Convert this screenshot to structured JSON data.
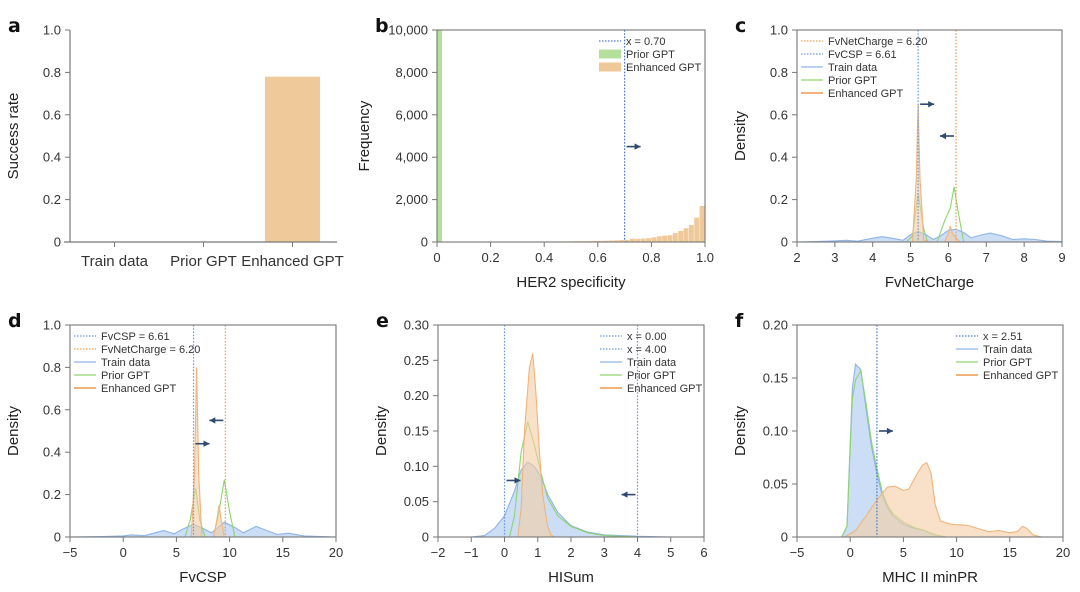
{
  "chart_data": [
    {
      "id": "a",
      "type": "bar",
      "panel_letter": "a",
      "title": "",
      "xlabel": "",
      "ylabel": "Success rate",
      "categories": [
        "Train data",
        "Prior GPT",
        "Enhanced GPT"
      ],
      "values": [
        0,
        0,
        0.78
      ],
      "ylim": [
        0,
        1.0
      ],
      "yticks": [
        0,
        0.2,
        0.4,
        0.6,
        0.8,
        1.0
      ],
      "ytick_labels": [
        "0",
        "0.2",
        "0.4",
        "0.6",
        "0.8",
        "1.0"
      ],
      "bar_color": "#f0c99a",
      "grid": false
    },
    {
      "id": "b",
      "type": "bar",
      "subtype": "histogram",
      "panel_letter": "b",
      "xlabel": "HER2 specificity",
      "ylabel": "Frequency",
      "xlim": [
        0,
        1.0
      ],
      "ylim": [
        0,
        10000
      ],
      "xticks": [
        0,
        0.2,
        0.4,
        0.6,
        0.8,
        1.0
      ],
      "xtick_labels": [
        "0",
        "0.2",
        "0.4",
        "0.6",
        "0.8",
        "1.0"
      ],
      "yticks": [
        0,
        2000,
        4000,
        6000,
        8000,
        10000
      ],
      "ytick_labels": [
        "0",
        "2,000",
        "4,000",
        "6,000",
        "8,000",
        "10,000"
      ],
      "legend_position": "top-right",
      "series": [
        {
          "name": "Prior GPT",
          "color": "#b5e09c",
          "bin_width": 0.02,
          "bins_start": [
            0.0
          ],
          "values": [
            10000
          ]
        },
        {
          "name": "Enhanced GPT",
          "color": "#f0c99a",
          "bin_width": 0.02,
          "bins_start": [
            0.0,
            0.02,
            0.04,
            0.06,
            0.08,
            0.1,
            0.12,
            0.14,
            0.16,
            0.18,
            0.2,
            0.22,
            0.24,
            0.26,
            0.28,
            0.3,
            0.32,
            0.34,
            0.36,
            0.38,
            0.4,
            0.42,
            0.44,
            0.46,
            0.48,
            0.5,
            0.52,
            0.54,
            0.56,
            0.58,
            0.6,
            0.62,
            0.64,
            0.66,
            0.68,
            0.7,
            0.72,
            0.74,
            0.76,
            0.78,
            0.8,
            0.82,
            0.84,
            0.86,
            0.88,
            0.9,
            0.92,
            0.94,
            0.96,
            0.98
          ],
          "values": [
            10,
            10,
            10,
            10,
            10,
            10,
            10,
            10,
            10,
            10,
            10,
            15,
            15,
            15,
            15,
            15,
            20,
            20,
            25,
            25,
            25,
            25,
            25,
            30,
            30,
            35,
            40,
            40,
            45,
            50,
            55,
            60,
            70,
            80,
            90,
            100,
            160,
            150,
            160,
            180,
            220,
            270,
            300,
            320,
            420,
            520,
            650,
            800,
            1150,
            1700
          ]
        }
      ],
      "vlines": [
        {
          "x": 0.7,
          "label": "x = 0.70",
          "color": "#4a78c8"
        }
      ],
      "annotations": [
        {
          "type": "arrow",
          "direction": "right",
          "x": 0.7,
          "y": 4500
        }
      ]
    },
    {
      "id": "c",
      "type": "area",
      "subtype": "density",
      "panel_letter": "c",
      "xlabel": "FvNetCharge",
      "ylabel": "Density",
      "xlim": [
        2,
        9
      ],
      "ylim": [
        0,
        1.0
      ],
      "xticks": [
        2,
        3,
        4,
        5,
        6,
        7,
        8,
        9
      ],
      "xtick_labels": [
        "2",
        "3",
        "4",
        "5",
        "6",
        "7",
        "8",
        "9"
      ],
      "yticks": [
        0,
        0.2,
        0.4,
        0.6,
        0.8,
        1.0
      ],
      "ytick_labels": [
        "0",
        "0.2",
        "0.4",
        "0.6",
        "0.8",
        "1.0"
      ],
      "legend_position": "top-left",
      "vlines": [
        {
          "x": 6.2,
          "label": "FvNetCharge = 6.20",
          "color": "#f0a050"
        },
        {
          "x": 5.2,
          "label": "FvCSP = 6.61",
          "color": "#6a9ae0"
        }
      ],
      "series": [
        {
          "name": "Train data",
          "color": "#8fb4e6",
          "fill": "#a9c8ee",
          "x": [
            2,
            2.5,
            3,
            3.3,
            3.6,
            4,
            4.25,
            4.5,
            4.8,
            5.0,
            5.2,
            5.4,
            5.6,
            5.8,
            6.0,
            6.2,
            6.4,
            6.6,
            6.8,
            7.1,
            7.4,
            7.7,
            8.0,
            8.3,
            8.6,
            9
          ],
          "y": [
            0,
            0.002,
            0.005,
            0.008,
            0.004,
            0.018,
            0.025,
            0.018,
            0.008,
            0.035,
            0.05,
            0.035,
            0.012,
            0.03,
            0.055,
            0.06,
            0.045,
            0.02,
            0.03,
            0.042,
            0.03,
            0.012,
            0.015,
            0.012,
            0.004,
            0.002
          ]
        },
        {
          "name": "Prior GPT",
          "color": "#8ed46e",
          "fill": "none",
          "x": [
            2,
            4.9,
            5.05,
            5.2,
            5.35,
            5.45,
            5.7,
            5.9,
            6.05,
            6.15,
            6.25,
            6.4,
            9
          ],
          "y": [
            0,
            0,
            0.03,
            0.23,
            0.06,
            0,
            0,
            0.1,
            0.16,
            0.26,
            0.15,
            0,
            0
          ]
        },
        {
          "name": "Enhanced GPT",
          "color": "#f0b47a",
          "fill": "#f3cda4",
          "x": [
            2,
            5.05,
            5.15,
            5.2,
            5.25,
            5.35,
            5.5,
            5.9,
            6.0,
            6.05,
            6.1,
            6.3,
            9
          ],
          "y": [
            0,
            0,
            0.3,
            0.65,
            0.3,
            0.01,
            0,
            0,
            0.04,
            0.075,
            0.04,
            0,
            0
          ]
        }
      ],
      "annotations": [
        {
          "type": "arrow",
          "direction": "right",
          "x": 5.2,
          "y": 0.65
        },
        {
          "type": "arrow",
          "direction": "left",
          "x": 6.2,
          "y": 0.5
        }
      ]
    },
    {
      "id": "d",
      "type": "area",
      "subtype": "density",
      "panel_letter": "d",
      "xlabel": "FvCSP",
      "ylabel": "Density",
      "xlim": [
        -5,
        20
      ],
      "ylim": [
        0,
        1.0
      ],
      "xticks": [
        -5,
        0,
        5,
        10,
        15,
        20
      ],
      "xtick_labels": [
        "−5",
        "0",
        "5",
        "10",
        "15",
        "20"
      ],
      "yticks": [
        0,
        0.2,
        0.4,
        0.6,
        0.8,
        1.0
      ],
      "ytick_labels": [
        "0",
        "0.2",
        "0.4",
        "0.6",
        "0.8",
        "1.0"
      ],
      "legend_position": "top-left",
      "vlines": [
        {
          "x": 6.61,
          "label": "FvCSP = 6.61",
          "color": "#6a9ae0"
        },
        {
          "x": 9.6,
          "label": "FvNetCharge = 6.20",
          "color": "#f0a050"
        }
      ],
      "series": [
        {
          "name": "Train data",
          "color": "#8fb4e6",
          "fill": "#a9c8ee",
          "x": [
            -5,
            -2,
            0,
            0.8,
            2,
            3,
            3.8,
            4.8,
            5.5,
            6.6,
            7.5,
            8.3,
            9.5,
            10.5,
            11.3,
            12.5,
            13.5,
            14.5,
            15.5,
            17,
            18.5,
            20
          ],
          "y": [
            0,
            0.002,
            0.005,
            0.01,
            0.006,
            0.02,
            0.03,
            0.015,
            0.035,
            0.06,
            0.04,
            0.02,
            0.07,
            0.045,
            0.02,
            0.05,
            0.03,
            0.012,
            0.018,
            0.005,
            0.002,
            0
          ]
        },
        {
          "name": "Prior GPT",
          "color": "#8ed46e",
          "fill": "none",
          "x": [
            -5,
            5.8,
            6.3,
            6.8,
            7.2,
            7.7,
            8.5,
            9.0,
            9.5,
            10.0,
            10.5,
            20
          ],
          "y": [
            0,
            0,
            0.08,
            0.23,
            0.08,
            0,
            0,
            0.12,
            0.27,
            0.12,
            0,
            0
          ]
        },
        {
          "name": "Enhanced GPT",
          "color": "#f0b47a",
          "fill": "#f3cda4",
          "x": [
            -5,
            6.4,
            6.7,
            6.9,
            7.1,
            7.4,
            8.5,
            8.8,
            9.0,
            9.2,
            9.5,
            20
          ],
          "y": [
            0,
            0,
            0.3,
            0.8,
            0.3,
            0,
            0,
            0.08,
            0.15,
            0.08,
            0,
            0
          ]
        }
      ],
      "annotations": [
        {
          "type": "arrow",
          "direction": "left",
          "x": 9.6,
          "y": 0.55
        },
        {
          "type": "arrow",
          "direction": "right",
          "x": 6.61,
          "y": 0.44
        }
      ]
    },
    {
      "id": "e",
      "type": "area",
      "subtype": "density",
      "panel_letter": "e",
      "xlabel": "HISum",
      "ylabel": "Density",
      "xlim": [
        -2,
        6
      ],
      "ylim": [
        0,
        0.3
      ],
      "xticks": [
        -2,
        -1,
        0,
        1,
        2,
        3,
        4,
        5,
        6
      ],
      "xtick_labels": [
        "−2",
        "−1",
        "0",
        "1",
        "2",
        "3",
        "4",
        "5",
        "6"
      ],
      "yticks": [
        0,
        0.05,
        0.1,
        0.15,
        0.2,
        0.25,
        0.3
      ],
      "ytick_labels": [
        "0",
        "0.05",
        "0.10",
        "0.15",
        "0.20",
        "0.25",
        "0.30"
      ],
      "legend_position": "top-right",
      "vlines": [
        {
          "x": 0.0,
          "label": "x = 0.00",
          "color": "#6a9ae0"
        },
        {
          "x": 4.0,
          "label": "x = 4.00",
          "color": "#6a9ae0"
        }
      ],
      "series": [
        {
          "name": "Train data",
          "color": "#8fb4e6",
          "fill": "#a9c8ee",
          "x": [
            -2,
            -1,
            -0.6,
            -0.3,
            0,
            0.3,
            0.5,
            0.7,
            0.9,
            1.1,
            1.3,
            1.6,
            2.0,
            2.5,
            3,
            4,
            5,
            6
          ],
          "y": [
            0,
            0,
            0.002,
            0.012,
            0.03,
            0.065,
            0.095,
            0.106,
            0.1,
            0.085,
            0.06,
            0.035,
            0.016,
            0.007,
            0.003,
            0.001,
            0,
            0
          ]
        },
        {
          "name": "Prior GPT",
          "color": "#8ed46e",
          "fill": "none",
          "x": [
            -2,
            0.15,
            0.3,
            0.5,
            0.7,
            0.9,
            1.1,
            1.3,
            1.6,
            2.0,
            2.5,
            3,
            4,
            6
          ],
          "y": [
            0,
            0,
            0.03,
            0.12,
            0.163,
            0.13,
            0.09,
            0.055,
            0.03,
            0.015,
            0.006,
            0.002,
            0,
            0
          ]
        },
        {
          "name": "Enhanced GPT",
          "color": "#f0b47a",
          "fill": "#f3cda4",
          "x": [
            -2,
            0.4,
            0.5,
            0.6,
            0.75,
            0.85,
            0.95,
            1.05,
            1.15,
            1.3,
            1.4,
            1.5,
            6
          ],
          "y": [
            0,
            0,
            0.04,
            0.15,
            0.24,
            0.26,
            0.2,
            0.12,
            0.06,
            0.015,
            0.003,
            0,
            0
          ]
        }
      ],
      "annotations": [
        {
          "type": "arrow",
          "direction": "right",
          "x": 0.0,
          "y": 0.08
        },
        {
          "type": "arrow",
          "direction": "left",
          "x": 4.0,
          "y": 0.06
        }
      ]
    },
    {
      "id": "f",
      "type": "area",
      "subtype": "density",
      "panel_letter": "f",
      "xlabel": "MHC II minPR",
      "ylabel": "Density",
      "xlim": [
        -5,
        20
      ],
      "ylim": [
        0,
        0.2
      ],
      "xticks": [
        -5,
        0,
        5,
        10,
        15,
        20
      ],
      "xtick_labels": [
        "−5",
        "0",
        "5",
        "10",
        "15",
        "20"
      ],
      "yticks": [
        0,
        0.05,
        0.1,
        0.15,
        0.2
      ],
      "ytick_labels": [
        "0",
        "0.05",
        "0.10",
        "0.15",
        "0.20"
      ],
      "legend_position": "top-right",
      "vlines": [
        {
          "x": 2.51,
          "label": "x = 2.51",
          "color": "#4a78c8"
        }
      ],
      "series": [
        {
          "name": "Train data",
          "color": "#8fb4e6",
          "fill": "#a9c8ee",
          "x": [
            -5,
            -0.8,
            -0.3,
            0.2,
            0.5,
            1.0,
            1.5,
            2.0,
            2.5,
            3.0,
            3.5,
            4.0,
            5.0,
            6.0,
            7.0,
            7.5,
            8.0,
            9,
            20
          ],
          "y": [
            0,
            0,
            0.01,
            0.14,
            0.163,
            0.158,
            0.12,
            0.085,
            0.06,
            0.04,
            0.028,
            0.02,
            0.012,
            0.008,
            0.006,
            0.004,
            0.002,
            0,
            0
          ]
        },
        {
          "name": "Prior GPT",
          "color": "#8ed46e",
          "fill": "none",
          "x": [
            -5,
            -0.8,
            -0.3,
            0.2,
            0.5,
            1.0,
            1.5,
            2.0,
            2.5,
            3.0,
            3.5,
            4.0,
            5.0,
            6.0,
            7.0,
            7.5,
            8.0,
            9,
            20
          ],
          "y": [
            0,
            0,
            0.01,
            0.13,
            0.148,
            0.157,
            0.125,
            0.09,
            0.065,
            0.043,
            0.03,
            0.022,
            0.014,
            0.009,
            0.006,
            0.004,
            0.002,
            0,
            0
          ]
        },
        {
          "name": "Enhanced GPT",
          "color": "#f0b47a",
          "fill": "#f3cda4",
          "x": [
            -5,
            -0.5,
            0.5,
            1.5,
            2.5,
            3.5,
            4.2,
            5.0,
            5.5,
            6.2,
            6.8,
            7.2,
            7.6,
            8.0,
            8.5,
            9.5,
            11,
            12,
            13,
            14,
            15,
            15.7,
            16.2,
            16.6,
            17.2,
            18,
            20
          ],
          "y": [
            0,
            0,
            0.006,
            0.02,
            0.035,
            0.047,
            0.048,
            0.044,
            0.045,
            0.058,
            0.068,
            0.07,
            0.06,
            0.03,
            0.015,
            0.012,
            0.011,
            0.008,
            0.005,
            0.006,
            0.004,
            0.005,
            0.01,
            0.008,
            0.002,
            0,
            0
          ]
        }
      ],
      "annotations": [
        {
          "type": "arrow",
          "direction": "right",
          "x": 2.51,
          "y": 0.1
        }
      ]
    }
  ]
}
